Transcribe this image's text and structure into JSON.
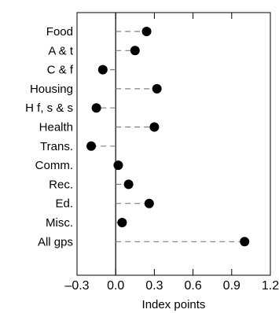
{
  "chart_data": {
    "type": "dot",
    "categories": [
      "Food",
      "A & t",
      "C & f",
      "Housing",
      "H f, s & s",
      "Health",
      "Trans.",
      "Comm.",
      "Rec.",
      "Ed.",
      "Misc.",
      "All gps"
    ],
    "values": [
      0.24,
      0.15,
      -0.1,
      0.32,
      -0.15,
      0.3,
      -0.19,
      0.02,
      0.1,
      0.26,
      0.05,
      1.0
    ],
    "xlabel": "Index points",
    "xlim": [
      -0.3,
      1.2
    ],
    "xticks": [
      -0.3,
      0.0,
      0.3,
      0.6,
      0.9,
      1.2
    ],
    "xtick_labels": [
      "–0.3",
      "0.0",
      "0.3",
      "0.6",
      "0.9",
      "1.2"
    ],
    "baseline": 0,
    "leader_lines": "dashed",
    "grid": false,
    "legend": "none",
    "colors": {
      "marker": "#000000",
      "leader": "#808080",
      "axis": "#000000"
    }
  }
}
